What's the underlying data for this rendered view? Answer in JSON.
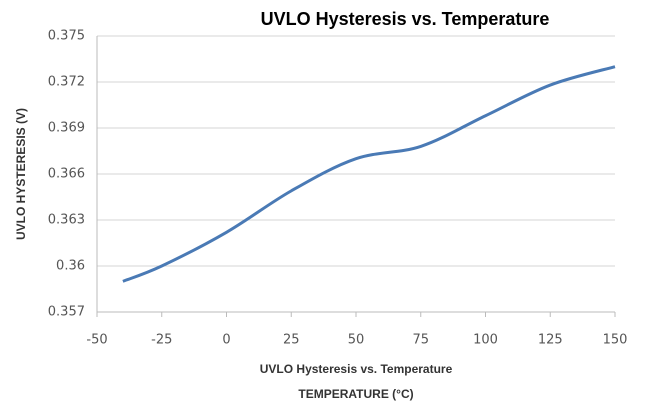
{
  "chart_data": {
    "type": "line",
    "title": "UVLO Hysteresis vs. Temperature",
    "ylabel": "UVLO HYSTERESIS (V)",
    "xlabel": [
      "UVLO Hysteresis vs. Temperature",
      "TEMPERATURE (°C)"
    ],
    "x": [
      -40,
      -25,
      0,
      25,
      50,
      75,
      100,
      125,
      150
    ],
    "series": [
      {
        "name": "UVLO Hysteresis",
        "color": "#4a7ab5",
        "values": [
          0.359,
          0.36,
          0.3622,
          0.3649,
          0.367,
          0.3678,
          0.3698,
          0.3718,
          0.373
        ]
      }
    ],
    "xlim": [
      -50,
      150
    ],
    "xticks": [
      -50,
      -25,
      0,
      25,
      50,
      75,
      100,
      125,
      150
    ],
    "ylim": [
      0.357,
      0.375
    ],
    "yticks": [
      0.357,
      0.36,
      0.363,
      0.366,
      0.369,
      0.372,
      0.375
    ],
    "grid": true,
    "legend": false
  }
}
